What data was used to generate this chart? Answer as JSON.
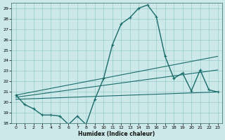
{
  "xlabel": "Humidex (Indice chaleur)",
  "background_color": "#cce8e8",
  "grid_color": "#99cccc",
  "line_color": "#1a6b6b",
  "xlim": [
    -0.5,
    23.5
  ],
  "ylim": [
    18,
    29.5
  ],
  "yticks": [
    18,
    19,
    20,
    21,
    22,
    23,
    24,
    25,
    26,
    27,
    28,
    29
  ],
  "xticks": [
    0,
    1,
    2,
    3,
    4,
    5,
    6,
    7,
    8,
    9,
    10,
    11,
    12,
    13,
    14,
    15,
    16,
    17,
    18,
    19,
    20,
    21,
    22,
    23
  ],
  "series1_x": [
    0,
    1,
    2,
    3,
    4,
    5,
    6,
    7,
    8,
    9,
    10,
    11,
    12,
    13,
    14,
    15,
    16,
    17,
    18,
    19,
    20,
    21,
    22,
    23
  ],
  "series1_y": [
    20.7,
    19.8,
    19.4,
    18.8,
    18.8,
    18.7,
    17.9,
    18.7,
    17.9,
    20.3,
    22.3,
    25.5,
    27.5,
    28.1,
    29.0,
    29.3,
    28.2,
    24.4,
    22.3,
    22.8,
    21.1,
    23.1,
    21.2,
    21.0
  ],
  "series2_x": [
    0,
    23
  ],
  "series2_y": [
    20.7,
    24.4
  ],
  "series3_x": [
    0,
    23
  ],
  "series3_y": [
    20.5,
    23.1
  ],
  "series4_x": [
    0,
    23
  ],
  "series4_y": [
    20.3,
    21.0
  ]
}
